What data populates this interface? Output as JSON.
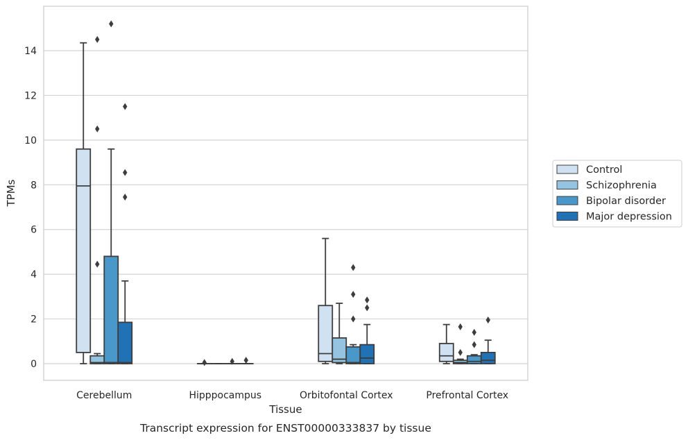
{
  "chart_data": {
    "type": "box",
    "caption": "Transcript expression for ENST00000333837 by tissue",
    "xlabel": "Tissue",
    "ylabel": "TPMs",
    "ylim": [
      -0.75,
      15.75
    ],
    "yticks": [
      0,
      2,
      4,
      6,
      8,
      10,
      12,
      14
    ],
    "grid": "horizontal",
    "legend_position": "right",
    "categories": [
      "Cerebellum",
      "Hipppocampus",
      "Orbitofontal Cortex",
      "Prefrontal Cortex"
    ],
    "series": [
      {
        "name": "Control",
        "color": "#d0e1f2",
        "boxes": [
          {
            "min": 0.0,
            "q1": 0.5,
            "median": 7.95,
            "q3": 9.6,
            "max": 14.35,
            "outliers": []
          },
          {
            "min": 0.0,
            "q1": 0.0,
            "median": 0.0,
            "q3": 0.0,
            "max": 0.0,
            "outliers": [
              0.05
            ]
          },
          {
            "min": 0.0,
            "q1": 0.1,
            "median": 0.45,
            "q3": 2.6,
            "max": 5.6,
            "outliers": []
          },
          {
            "min": 0.0,
            "q1": 0.1,
            "median": 0.35,
            "q3": 0.9,
            "max": 1.75,
            "outliers": []
          }
        ]
      },
      {
        "name": "Schizophrenia",
        "color": "#94c4df",
        "boxes": [
          {
            "min": 0.0,
            "q1": 0.0,
            "median": 0.05,
            "q3": 0.35,
            "max": 0.45,
            "outliers": [
              4.45,
              10.5,
              14.5
            ]
          },
          {
            "min": 0.0,
            "q1": 0.0,
            "median": 0.0,
            "q3": 0.0,
            "max": 0.0,
            "outliers": []
          },
          {
            "min": 0.0,
            "q1": 0.05,
            "median": 0.2,
            "q3": 1.15,
            "max": 2.7,
            "outliers": []
          },
          {
            "min": 0.0,
            "q1": 0.0,
            "median": 0.05,
            "q3": 0.15,
            "max": 0.2,
            "outliers": [
              0.5,
              1.65
            ]
          }
        ]
      },
      {
        "name": "Bipolar disorder",
        "color": "#4a98c9",
        "boxes": [
          {
            "min": 0.0,
            "q1": 0.0,
            "median": 0.05,
            "q3": 4.8,
            "max": 9.6,
            "outliers": [
              15.2
            ]
          },
          {
            "min": 0.0,
            "q1": 0.0,
            "median": 0.0,
            "q3": 0.0,
            "max": 0.0,
            "outliers": [
              0.1
            ]
          },
          {
            "min": 0.0,
            "q1": 0.0,
            "median": 0.05,
            "q3": 0.75,
            "max": 0.85,
            "outliers": [
              2.0,
              3.1,
              4.3
            ]
          },
          {
            "min": 0.0,
            "q1": 0.0,
            "median": 0.1,
            "q3": 0.35,
            "max": 0.4,
            "outliers": [
              0.85,
              1.4
            ]
          }
        ]
      },
      {
        "name": "Major depression",
        "color": "#2171b5",
        "boxes": [
          {
            "min": 0.0,
            "q1": 0.0,
            "median": 0.05,
            "q3": 1.85,
            "max": 3.7,
            "outliers": [
              7.45,
              8.55,
              11.5
            ]
          },
          {
            "min": 0.0,
            "q1": 0.0,
            "median": 0.0,
            "q3": 0.0,
            "max": 0.0,
            "outliers": [
              0.15
            ]
          },
          {
            "min": 0.0,
            "q1": 0.0,
            "median": 0.25,
            "q3": 0.85,
            "max": 1.75,
            "outliers": [
              2.5,
              2.85
            ]
          },
          {
            "min": 0.0,
            "q1": 0.0,
            "median": 0.15,
            "q3": 0.5,
            "max": 1.05,
            "outliers": [
              1.95
            ]
          }
        ]
      }
    ]
  }
}
